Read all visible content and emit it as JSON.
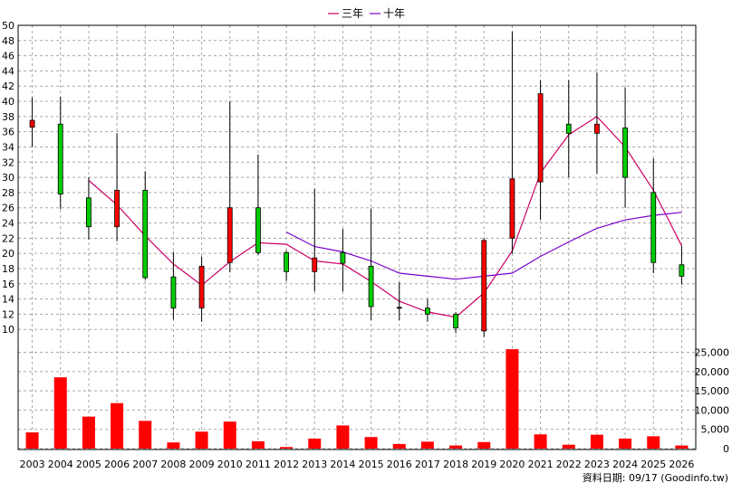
{
  "chart_data": {
    "type": "candlestick",
    "legend": {
      "placement": "top-center",
      "items": [
        {
          "label": "三年",
          "color": "#cc0066"
        },
        {
          "label": "十年",
          "color": "#7700cc"
        }
      ]
    },
    "price_axis": {
      "ylim": [
        8,
        50
      ],
      "ticks": [
        "10",
        "12",
        "14",
        "16",
        "18",
        "20",
        "22",
        "24",
        "26",
        "28",
        "30",
        "32",
        "34",
        "36",
        "38",
        "40",
        "42",
        "44",
        "46",
        "48",
        "50"
      ]
    },
    "volume_axis": {
      "ylim": [
        0,
        27000
      ],
      "ticks": [
        "0",
        "5,000",
        "10,000",
        "15,000",
        "20,000",
        "25,000"
      ]
    },
    "categories": [
      "2003",
      "2004",
      "2005",
      "2006",
      "2007",
      "2008",
      "2009",
      "2010",
      "2011",
      "2012",
      "2013",
      "2014",
      "2015",
      "2016",
      "2017",
      "2018",
      "2019",
      "2020",
      "2021",
      "2022",
      "2023",
      "2024",
      "2025",
      "2026"
    ],
    "candles": [
      {
        "open": 36.6,
        "close": 37.5,
        "high": 40.5,
        "low": 34.0
      },
      {
        "open": 37.0,
        "close": 27.8,
        "high": 40.6,
        "low": 25.8
      },
      {
        "open": 27.3,
        "close": 23.5,
        "high": 30.0,
        "low": 21.8
      },
      {
        "open": 23.5,
        "close": 28.3,
        "high": 35.8,
        "low": 21.6
      },
      {
        "open": 28.3,
        "close": 16.8,
        "high": 30.8,
        "low": 16.5
      },
      {
        "open": 16.9,
        "close": 12.8,
        "high": 20.2,
        "low": 11.3
      },
      {
        "open": 12.8,
        "close": 18.3,
        "high": 19.6,
        "low": 11.0
      },
      {
        "open": 18.8,
        "close": 26.0,
        "high": 40.0,
        "low": 17.5
      },
      {
        "open": 26.0,
        "close": 20.1,
        "high": 33.0,
        "low": 19.8
      },
      {
        "open": 20.1,
        "close": 17.6,
        "high": 20.4,
        "low": 16.4
      },
      {
        "open": 17.6,
        "close": 19.4,
        "high": 28.5,
        "low": 15.0
      },
      {
        "open": 20.1,
        "close": 18.7,
        "high": 23.2,
        "low": 15.0
      },
      {
        "open": 18.3,
        "close": 13.0,
        "high": 25.9,
        "low": 11.2
      },
      {
        "open": 12.9,
        "close": 12.9,
        "high": 16.2,
        "low": 11.2
      },
      {
        "open": 12.8,
        "close": 12.0,
        "high": 14.0,
        "low": 11.0
      },
      {
        "open": 12.0,
        "close": 10.2,
        "high": 12.3,
        "low": 9.5
      },
      {
        "open": 9.8,
        "close": 21.7,
        "high": 22.0,
        "low": 9.0
      },
      {
        "open": 22.0,
        "close": 29.8,
        "high": 49.2,
        "low": 20.0
      },
      {
        "open": 29.4,
        "close": 41.0,
        "high": 42.8,
        "low": 24.4
      },
      {
        "open": 37.0,
        "close": 35.8,
        "high": 42.8,
        "low": 30.0
      },
      {
        "open": 35.8,
        "close": 37.0,
        "high": 43.8,
        "low": 30.5
      },
      {
        "open": 36.5,
        "close": 30.0,
        "high": 41.8,
        "low": 26.0
      },
      {
        "open": 28.0,
        "close": 18.8,
        "high": 32.5,
        "low": 17.4
      },
      {
        "open": 18.5,
        "close": 17.0,
        "high": 21.0,
        "low": 15.9
      }
    ],
    "series": [
      {
        "name": "三年",
        "color": "#cc0066",
        "values": [
          null,
          null,
          29.6,
          26.4,
          22.3,
          18.6,
          15.8,
          18.9,
          21.4,
          21.2,
          19.0,
          18.6,
          16.3,
          13.7,
          12.3,
          11.6,
          14.8,
          20.3,
          30.6,
          35.6,
          38.0,
          34.0,
          28.3,
          21.0
        ]
      },
      {
        "name": "十年",
        "color": "#7700cc",
        "values": [
          null,
          null,
          null,
          null,
          null,
          null,
          null,
          null,
          null,
          22.8,
          20.9,
          20.2,
          19.0,
          17.4,
          17.0,
          16.6,
          17.0,
          17.4,
          19.6,
          21.5,
          23.3,
          24.4,
          25.0,
          25.4
        ]
      }
    ],
    "volume": {
      "color": "#ff0000",
      "values": [
        4200,
        18500,
        8300,
        11800,
        7200,
        1600,
        4400,
        7000,
        1900,
        400,
        2600,
        6000,
        3000,
        1200,
        1800,
        800,
        1700,
        25800,
        3700,
        1000,
        3600,
        2600,
        3200,
        800
      ]
    },
    "grid": true,
    "footer": "資料日期: 09/17 (Goodinfo.tw)"
  }
}
